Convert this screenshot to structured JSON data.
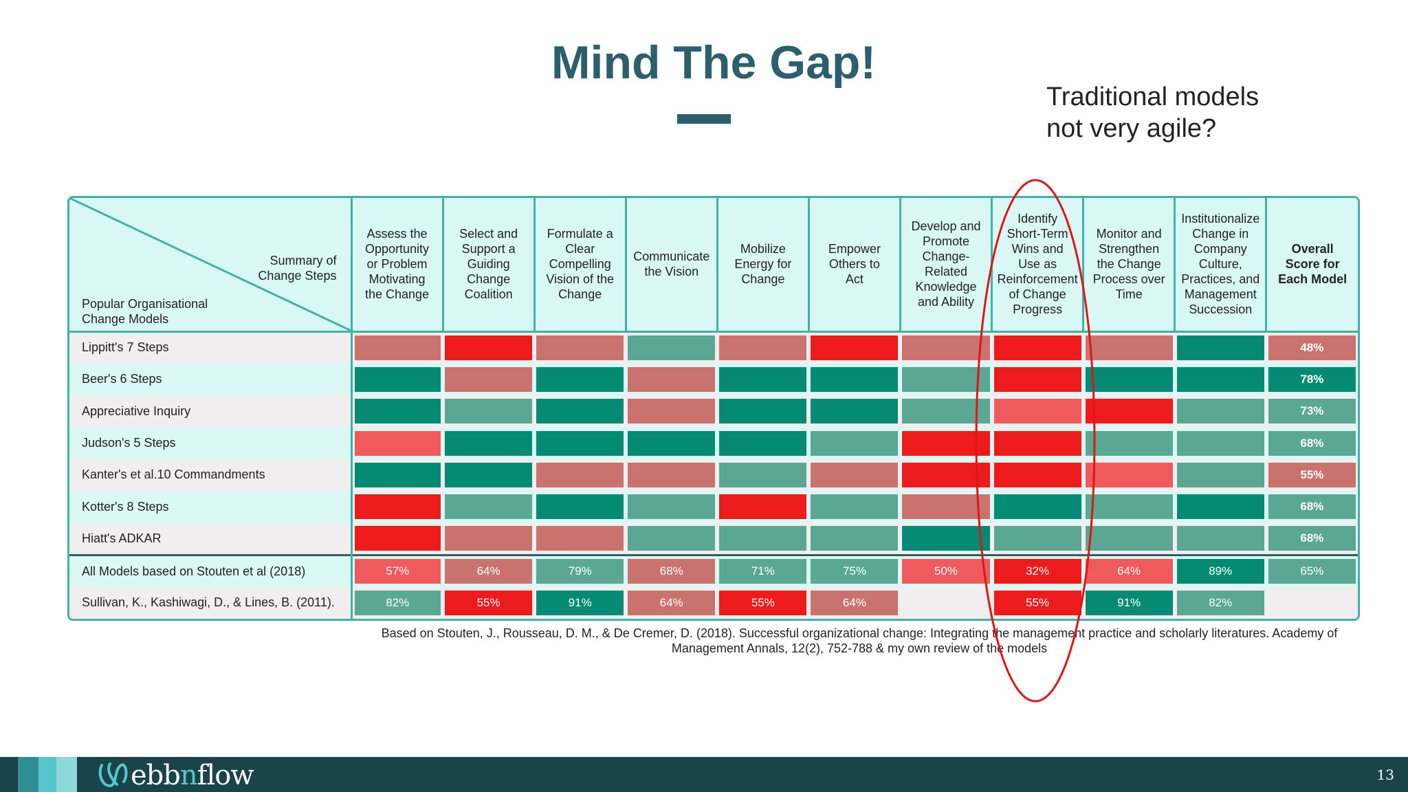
{
  "title": "Mind The Gap!",
  "callout": {
    "line1": "Traditional models",
    "line2": "not very agile?"
  },
  "corner": {
    "top_right_l1": "Summary of",
    "top_right_l2": "Change Steps",
    "bottom_left_l1": "Popular Organisational",
    "bottom_left_l2": "Change Models"
  },
  "columns": [
    [
      "Assess the",
      "Opportunity",
      "or Problem",
      "Motivating",
      "the Change"
    ],
    [
      "Select and",
      "Support a",
      "Guiding",
      "Change",
      "Coalition"
    ],
    [
      "Formulate a",
      "Clear",
      "Compelling",
      "Vision of the",
      "Change"
    ],
    [
      "Communicate",
      "the Vision"
    ],
    [
      "Mobilize",
      "Energy for",
      "Change"
    ],
    [
      "Empower",
      "Others to",
      "Act"
    ],
    [
      "Develop and",
      "Promote",
      "Change-",
      "Related",
      "Knowledge",
      "and Ability"
    ],
    [
      "Identify",
      "Short-Term",
      "Wins and",
      "Use as",
      "Reinforcement",
      "of Change",
      "Progress"
    ],
    [
      "Monitor and",
      "Strengthen",
      "the Change",
      "Process over",
      "Time"
    ],
    [
      "Institutionalize",
      "Change in",
      "Company",
      "Culture,",
      "Practices, and",
      "Management",
      "Succession"
    ],
    [
      "Overall",
      "Score for",
      "Each Model"
    ]
  ],
  "colors": {
    "dark_green": "#058a73",
    "mid_green": "#5aa893",
    "pink": "#c9726e",
    "red": "#ee1b1c",
    "light_red": "#f05a5c"
  },
  "rows": [
    {
      "model": "Lippitt's 7 Steps",
      "cells": [
        "pink",
        "red",
        "pink",
        "mid_green",
        "pink",
        "red",
        "pink",
        "red",
        "pink",
        "dark_green"
      ],
      "overall": "48%",
      "overall_color": "pink"
    },
    {
      "model": "Beer's 6 Steps",
      "cells": [
        "dark_green",
        "pink",
        "dark_green",
        "pink",
        "dark_green",
        "dark_green",
        "mid_green",
        "red",
        "dark_green",
        "dark_green"
      ],
      "overall": "78%",
      "overall_color": "dark_green"
    },
    {
      "model": "Appreciative Inquiry",
      "cells": [
        "dark_green",
        "mid_green",
        "dark_green",
        "pink",
        "dark_green",
        "dark_green",
        "mid_green",
        "light_red",
        "red",
        "mid_green"
      ],
      "overall": "73%",
      "overall_color": "mid_green"
    },
    {
      "model": "Judson's 5 Steps",
      "cells": [
        "light_red",
        "dark_green",
        "dark_green",
        "dark_green",
        "dark_green",
        "mid_green",
        "red",
        "red",
        "mid_green",
        "mid_green"
      ],
      "overall": "68%",
      "overall_color": "mid_green"
    },
    {
      "model": "Kanter's et al.10 Commandments",
      "cells": [
        "dark_green",
        "dark_green",
        "pink",
        "pink",
        "mid_green",
        "pink",
        "red",
        "red",
        "light_red",
        "mid_green"
      ],
      "overall": "55%",
      "overall_color": "pink"
    },
    {
      "model": "Kotter's 8 Steps",
      "cells": [
        "red",
        "mid_green",
        "dark_green",
        "mid_green",
        "red",
        "mid_green",
        "pink",
        "dark_green",
        "mid_green",
        "dark_green"
      ],
      "overall": "68%",
      "overall_color": "mid_green"
    },
    {
      "model": "Hiatt's ADKAR",
      "cells": [
        "red",
        "pink",
        "pink",
        "mid_green",
        "mid_green",
        "mid_green",
        "dark_green",
        "mid_green",
        "mid_green",
        "mid_green"
      ],
      "overall": "68%",
      "overall_color": "mid_green"
    }
  ],
  "summary_row": {
    "model": "All Models based on Stouten et al (2018)",
    "values": [
      "57%",
      "64%",
      "79%",
      "68%",
      "71%",
      "75%",
      "50%",
      "32%",
      "64%",
      "89%",
      "65%"
    ],
    "colors": [
      "light_red",
      "pink",
      "mid_green",
      "pink",
      "mid_green",
      "mid_green",
      "light_red",
      "red",
      "light_red",
      "dark_green",
      "mid_green"
    ]
  },
  "sullivan_row": {
    "model": "Sullivan, K., Kashiwagi, D., & Lines, B. (2011).",
    "values": [
      "82%",
      "55%",
      "91%",
      "64%",
      "55%",
      "64%",
      "",
      "55%",
      "91%",
      "82%",
      ""
    ],
    "colors": [
      "mid_green",
      "red",
      "dark_green",
      "pink",
      "red",
      "pink",
      "",
      "red",
      "dark_green",
      "mid_green",
      ""
    ]
  },
  "source_l1": "Based on Stouten, J., Rousseau, D. M., & De Cremer, D. (2018). Successful organizational change: Integrating the management practice and scholarly literatures. Academy of",
  "source_l2": "Management Annals, 12(2), 752-788 & my own review of the models",
  "footer": {
    "logo_pre": "ebb",
    "logo_n": "n",
    "logo_post": "flow",
    "page_number": "13",
    "squares": [
      "#2e8e94",
      "#55c6cc",
      "#8fd8da"
    ]
  }
}
